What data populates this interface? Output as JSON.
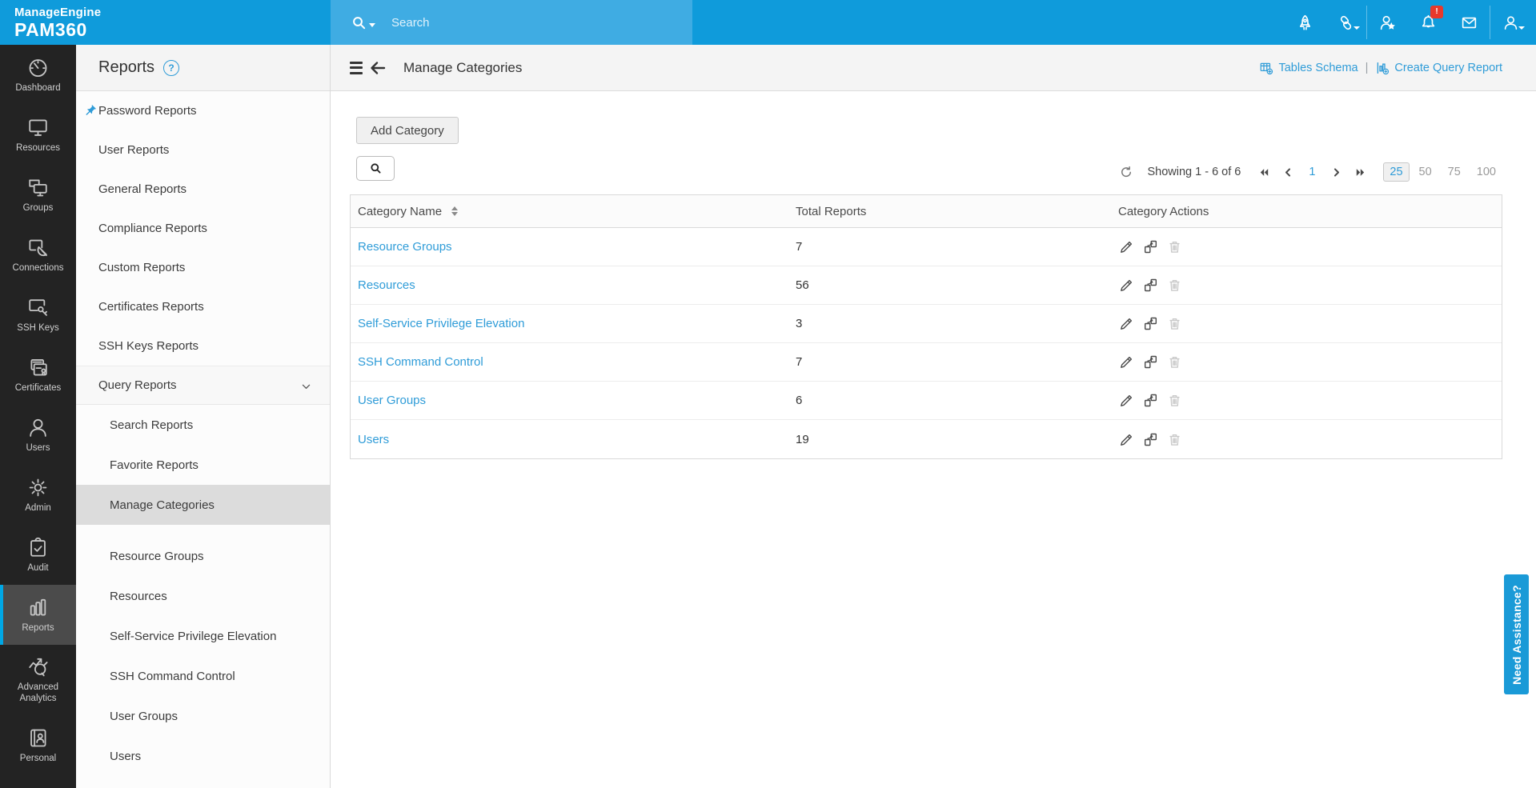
{
  "colors": {
    "accent": "#2F9CD8",
    "header_blue": "#0F9BDB",
    "search_band_blue": "#3FACE3",
    "sidebar_dark": "#232323",
    "active_cyan": "#00A7E5",
    "badge_red": "#E8392C"
  },
  "header": {
    "brand_line1": "ManageEngine",
    "brand_line2": "PAM360",
    "search": {
      "placeholder": "Search",
      "icon": "search"
    },
    "icons": [
      {
        "name": "rocket",
        "caret": false,
        "badge": ""
      },
      {
        "name": "link",
        "caret": true,
        "badge": ""
      },
      {
        "name": "divider"
      },
      {
        "name": "user-star",
        "caret": false,
        "badge": ""
      },
      {
        "name": "bell",
        "caret": false,
        "badge": "!"
      },
      {
        "name": "mail",
        "caret": false,
        "badge": ""
      },
      {
        "name": "divider"
      },
      {
        "name": "user",
        "caret": true,
        "badge": ""
      }
    ]
  },
  "nav": {
    "items": [
      {
        "label": "Dashboard",
        "icon": "dashboard",
        "active": false
      },
      {
        "label": "Resources",
        "icon": "resources",
        "active": false
      },
      {
        "label": "Groups",
        "icon": "groups",
        "active": false
      },
      {
        "label": "Connections",
        "icon": "connections",
        "active": false
      },
      {
        "label": "SSH Keys",
        "icon": "ssh-keys",
        "active": false
      },
      {
        "label": "Certificates",
        "icon": "certificates",
        "active": false
      },
      {
        "label": "Users",
        "icon": "users",
        "active": false
      },
      {
        "label": "Admin",
        "icon": "admin",
        "active": false
      },
      {
        "label": "Audit",
        "icon": "audit",
        "active": false
      },
      {
        "label": "Reports",
        "icon": "reports",
        "active": true
      },
      {
        "label": "Advanced Analytics",
        "icon": "advanced-analytics",
        "active": false,
        "tall": true
      },
      {
        "label": "Personal",
        "icon": "personal",
        "active": false
      }
    ]
  },
  "sidebar": {
    "title": "Reports",
    "help": "?",
    "items": [
      {
        "label": "Password Reports",
        "pinned": true
      },
      {
        "label": "User Reports"
      },
      {
        "label": "General Reports"
      },
      {
        "label": "Compliance Reports"
      },
      {
        "label": "Custom Reports"
      },
      {
        "label": "Certificates Reports"
      },
      {
        "label": "SSH Keys Reports"
      },
      {
        "label": "Query Reports",
        "expandable": true
      },
      {
        "label": "Search Reports",
        "indent": true
      },
      {
        "label": "Favorite Reports",
        "indent": true
      },
      {
        "label": "Manage Categories",
        "indent": true,
        "active": true
      },
      {
        "label": "Resource Groups",
        "indent": true,
        "gap_before": true
      },
      {
        "label": "Resources",
        "indent": true
      },
      {
        "label": "Self-Service Privilege Elevation",
        "indent": true
      },
      {
        "label": "SSH Command Control",
        "indent": true
      },
      {
        "label": "User Groups",
        "indent": true
      },
      {
        "label": "Users",
        "indent": true
      }
    ]
  },
  "content": {
    "title": "Manage Categories",
    "links": {
      "tables_schema": "Tables Schema",
      "separator": "|",
      "create_query_report": "Create Query Report"
    },
    "add_button": "Add Category",
    "pagination": {
      "showing": "Showing 1 - 6 of 6",
      "page": "1",
      "sizes": [
        "25",
        "50",
        "75",
        "100"
      ],
      "active_size": "25"
    },
    "table": {
      "columns": [
        "Category Name",
        "Total Reports",
        "Category Actions"
      ],
      "rows": [
        {
          "name": "Resource Groups",
          "total": "7"
        },
        {
          "name": "Resources",
          "total": "56"
        },
        {
          "name": "Self-Service Privilege Elevation",
          "total": "3"
        },
        {
          "name": "SSH Command Control",
          "total": "7"
        },
        {
          "name": "User Groups",
          "total": "6"
        },
        {
          "name": "Users",
          "total": "19"
        }
      ],
      "row_actions": [
        "edit",
        "move",
        "delete"
      ]
    }
  },
  "assistance_tab": "Need Assistance?"
}
